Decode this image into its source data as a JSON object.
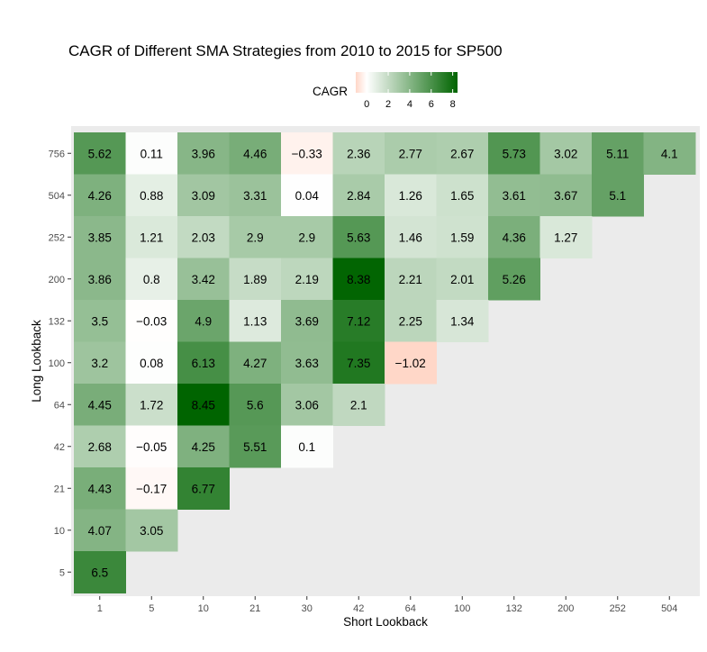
{
  "chart_data": {
    "type": "heatmap",
    "title": "CAGR of Different SMA Strategies from 2010 to 2015 for SP500",
    "xlabel": "Short Lookback",
    "ylabel": "Long Lookback",
    "x_categories": [
      "1",
      "5",
      "10",
      "21",
      "30",
      "42",
      "64",
      "100",
      "132",
      "200",
      "252",
      "504"
    ],
    "y_categories": [
      "756",
      "504",
      "252",
      "200",
      "132",
      "100",
      "64",
      "42",
      "21",
      "10",
      "5"
    ],
    "rows": [
      {
        "long": "756",
        "values": [
          5.62,
          0.11,
          3.96,
          4.46,
          -0.33,
          2.36,
          2.77,
          2.67,
          5.73,
          3.02,
          5.11,
          4.1
        ],
        "labels": [
          "5.62",
          "0.11",
          "3.96",
          "4.46",
          "−0.33",
          "2.36",
          "2.77",
          "2.67",
          "5.73",
          "3.02",
          "5.11",
          "4.1"
        ]
      },
      {
        "long": "504",
        "values": [
          4.26,
          0.88,
          3.09,
          3.31,
          0.04,
          2.84,
          1.26,
          1.65,
          3.61,
          3.67,
          5.1
        ],
        "labels": [
          "4.26",
          "0.88",
          "3.09",
          "3.31",
          "0.04",
          "2.84",
          "1.26",
          "1.65",
          "3.61",
          "3.67",
          "5.1"
        ]
      },
      {
        "long": "252",
        "values": [
          3.85,
          1.21,
          2.03,
          2.9,
          2.9,
          5.63,
          1.46,
          1.59,
          4.36,
          1.27
        ],
        "labels": [
          "3.85",
          "1.21",
          "2.03",
          "2.9",
          "2.9",
          "5.63",
          "1.46",
          "1.59",
          "4.36",
          "1.27"
        ]
      },
      {
        "long": "200",
        "values": [
          3.86,
          0.8,
          3.42,
          1.89,
          2.19,
          8.38,
          2.21,
          2.01,
          5.26
        ],
        "labels": [
          "3.86",
          "0.8",
          "3.42",
          "1.89",
          "2.19",
          "8.38",
          "2.21",
          "2.01",
          "5.26"
        ]
      },
      {
        "long": "132",
        "values": [
          3.5,
          -0.03,
          4.9,
          1.13,
          3.69,
          7.12,
          2.25,
          1.34
        ],
        "labels": [
          "3.5",
          "−0.03",
          "4.9",
          "1.13",
          "3.69",
          "7.12",
          "2.25",
          "1.34"
        ]
      },
      {
        "long": "100",
        "values": [
          3.2,
          0.08,
          6.13,
          4.27,
          3.63,
          7.35,
          -1.02
        ],
        "labels": [
          "3.2",
          "0.08",
          "6.13",
          "4.27",
          "3.63",
          "7.35",
          "−1.02"
        ]
      },
      {
        "long": "64",
        "values": [
          4.45,
          1.72,
          8.45,
          5.6,
          3.06,
          2.1
        ],
        "labels": [
          "4.45",
          "1.72",
          "8.45",
          "5.6",
          "3.06",
          "2.1"
        ]
      },
      {
        "long": "42",
        "values": [
          2.68,
          -0.05,
          4.25,
          5.51,
          0.1
        ],
        "labels": [
          "2.68",
          "−0.05",
          "4.25",
          "5.51",
          "0.1"
        ]
      },
      {
        "long": "21",
        "values": [
          4.43,
          -0.17,
          6.77
        ],
        "labels": [
          "4.43",
          "−0.17",
          "6.77"
        ]
      },
      {
        "long": "10",
        "values": [
          4.07,
          3.05
        ],
        "labels": [
          "4.07",
          "3.05"
        ]
      },
      {
        "long": "5",
        "values": [
          6.5
        ],
        "labels": [
          "6.5"
        ]
      }
    ],
    "legend": {
      "title": "CAGR",
      "placement": "top",
      "ticks": [
        "0",
        "2",
        "4",
        "6",
        "8"
      ],
      "tick_values": [
        0,
        2,
        4,
        6,
        8
      ],
      "min": -1.02,
      "max": 8.45
    },
    "colors": {
      "low": "#ffd7c8",
      "mid": "#ffffff",
      "high": "#006400",
      "panel_background": "#ebebeb",
      "text": "#000000",
      "axis_text": "#4d4d4d"
    },
    "grid": false
  }
}
